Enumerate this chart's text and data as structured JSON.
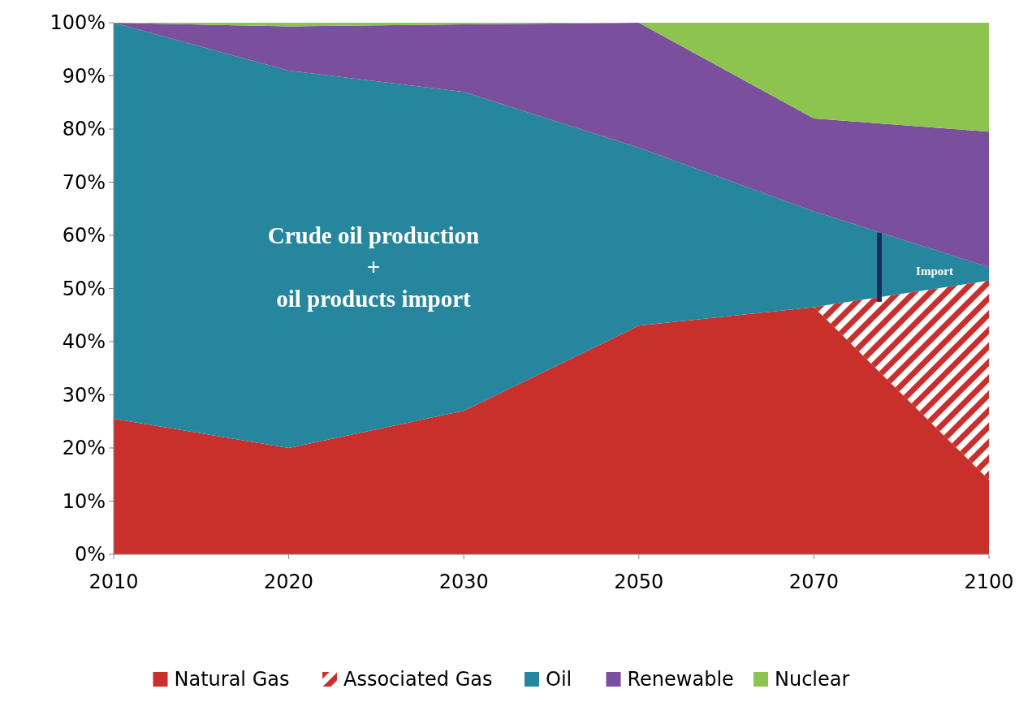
{
  "chart_data": {
    "type": "area",
    "stacked": true,
    "categories": [
      "2010",
      "2020",
      "2030",
      "2050",
      "2070",
      "2100"
    ],
    "series": [
      {
        "name": "Natural Gas",
        "color": "#c9302c",
        "values": [
          25.5,
          20,
          27,
          43,
          46.5,
          14
        ]
      },
      {
        "name": "Associated Gas",
        "color": "#c9302c",
        "values": [
          0,
          0,
          0,
          0,
          0,
          37.5
        ]
      },
      {
        "name": "Oil",
        "color": "#26869d",
        "values": [
          74.5,
          71,
          60,
          33.5,
          18,
          2.5
        ]
      },
      {
        "name": "Renewable",
        "color": "#7a4f9e",
        "values": [
          0,
          8.3,
          12.7,
          23.5,
          17.5,
          25.5
        ]
      },
      {
        "name": "Nuclear",
        "color": "#8dc44f",
        "values": [
          0,
          0.7,
          0.3,
          0,
          18,
          20.5
        ]
      }
    ],
    "ylim": [
      0,
      100
    ],
    "yticks": [
      {
        "value": 0,
        "label": "0%"
      },
      {
        "value": 10,
        "label": "10%"
      },
      {
        "value": 20,
        "label": "20%"
      },
      {
        "value": 30,
        "label": "30%"
      },
      {
        "value": 40,
        "label": "40%"
      },
      {
        "value": 50,
        "label": "50%"
      },
      {
        "value": 60,
        "label": "60%"
      },
      {
        "value": 70,
        "label": "70%"
      },
      {
        "value": 80,
        "label": "80%"
      },
      {
        "value": 90,
        "label": "90%"
      },
      {
        "value": 100,
        "label": "100%"
      }
    ],
    "annotations": [
      "Crude oil production\n+\noil products import",
      "Import"
    ],
    "legend": "bottom",
    "grid": false
  }
}
